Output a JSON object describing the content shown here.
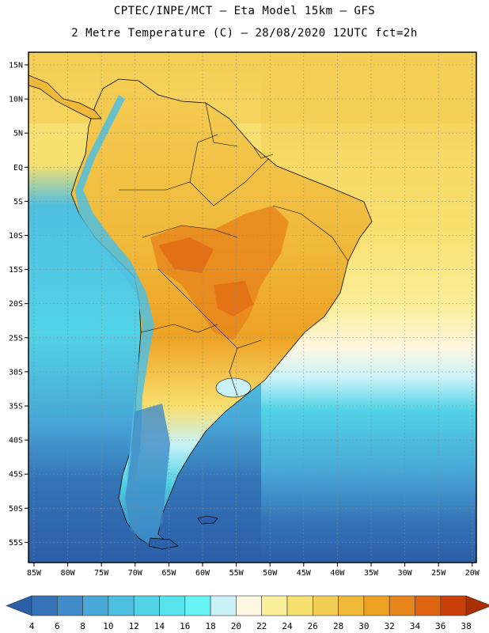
{
  "header": {
    "line1": "CPTEC/INPE/MCT –  Eta Model 15km – GFS",
    "line2": "2 Metre Temperature (C) – 28/08/2020 12UTC fct=2h"
  },
  "map": {
    "lat_labels": [
      "15N",
      "10N",
      "5N",
      "EQ",
      "5S",
      "10S",
      "15S",
      "20S",
      "25S",
      "30S",
      "35S",
      "40S",
      "45S",
      "50S",
      "55S"
    ],
    "lon_labels": [
      "85W",
      "80W",
      "75W",
      "70W",
      "65W",
      "60W",
      "55W",
      "50W",
      "45W",
      "40W",
      "35W",
      "30W",
      "25W",
      "20W"
    ]
  },
  "colorbar": {
    "levels": [
      "4",
      "6",
      "8",
      "10",
      "12",
      "14",
      "16",
      "18",
      "20",
      "22",
      "24",
      "26",
      "28",
      "30",
      "32",
      "34",
      "36",
      "38"
    ],
    "colors": [
      "#2b5fa8",
      "#3373b6",
      "#3f8cc8",
      "#48a8d8",
      "#4fbfe0",
      "#52d3e6",
      "#56e3ee",
      "#66f4f5",
      "#c8f2f8",
      "#fdf7e2",
      "#fbef9a",
      "#f8e070",
      "#f4cd54",
      "#f0b93a",
      "#eea224",
      "#e8861c",
      "#df6410",
      "#c84008",
      "#a82e04"
    ]
  },
  "colors": {
    "ocean_south": "#2b5fa8",
    "ocean_mid": "#4fbfe0",
    "tropics": "#f8e070",
    "land_hot": "#f0b93a",
    "hotspot": "#e8861c"
  }
}
